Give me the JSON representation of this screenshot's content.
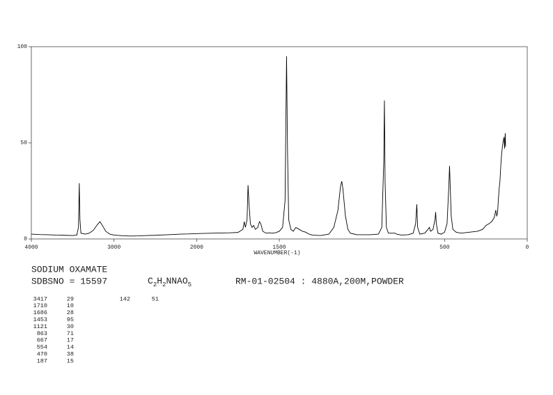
{
  "chart_data": {
    "type": "line",
    "color": "#000000",
    "x_label": "WAVENUMBER(-1)",
    "xlim": [
      4000,
      0
    ],
    "xbreak": 2000,
    "xbreak_factor": 2,
    "xticks": [
      4000,
      3000,
      2000,
      1500,
      500,
      0
    ],
    "ylim": [
      0,
      100
    ],
    "yticks": [
      0,
      50,
      100
    ],
    "x": [
      4000,
      3900,
      3800,
      3700,
      3600,
      3500,
      3450,
      3430,
      3420,
      3412,
      3400,
      3350,
      3300,
      3250,
      3200,
      3170,
      3140,
      3100,
      3050,
      3000,
      2900,
      2800,
      2700,
      2600,
      2500,
      2400,
      2300,
      2200,
      2100,
      2000,
      1900,
      1800,
      1750,
      1720,
      1712,
      1705,
      1695,
      1689,
      1683,
      1675,
      1665,
      1655,
      1645,
      1630,
      1620,
      1612,
      1600,
      1580,
      1560,
      1540,
      1520,
      1500,
      1480,
      1465,
      1456,
      1450,
      1443,
      1430,
      1415,
      1400,
      1390,
      1380,
      1360,
      1340,
      1320,
      1300,
      1250,
      1200,
      1170,
      1145,
      1130,
      1122,
      1115,
      1100,
      1085,
      1070,
      1030,
      950,
      900,
      880,
      868,
      864,
      860,
      852,
      840,
      800,
      790,
      760,
      720,
      690,
      675,
      668,
      663,
      650,
      620,
      600,
      592,
      585,
      570,
      558,
      554,
      550,
      540,
      520,
      500,
      485,
      474,
      470,
      466,
      460,
      450,
      430,
      400,
      350,
      300,
      270,
      250,
      230,
      215,
      200,
      190,
      185,
      180,
      175,
      170,
      165,
      160,
      155,
      150,
      145,
      140,
      137,
      133,
      131
    ],
    "values": [
      2.5,
      2.3,
      2.2,
      2.0,
      1.9,
      1.8,
      2.0,
      6,
      29,
      10,
      3,
      2.5,
      3,
      4.5,
      7.5,
      9,
      7,
      4,
      2.5,
      2,
      1.7,
      1.5,
      1.6,
      1.8,
      1.9,
      2.1,
      2.3,
      2.5,
      2.6,
      2.8,
      3.0,
      3.2,
      3.4,
      5,
      9,
      6,
      10,
      28,
      18,
      8,
      6,
      7,
      5,
      6,
      9,
      8,
      4,
      3,
      3.2,
      3,
      3.3,
      4,
      6,
      20,
      95,
      45,
      10,
      5,
      4,
      6,
      5.5,
      5,
      4,
      3.5,
      2.5,
      2,
      1.8,
      2.5,
      6,
      15,
      27,
      30,
      26,
      12,
      5,
      3,
      2.2,
      2.2,
      2.5,
      6,
      40,
      72,
      30,
      6,
      3,
      3,
      2.5,
      2,
      2.2,
      3,
      8,
      18,
      6,
      2.5,
      3,
      5,
      6,
      4,
      5,
      10,
      14,
      8,
      3,
      2.5,
      3.5,
      8,
      28,
      38,
      28,
      12,
      5,
      3.5,
      3,
      3.5,
      4,
      5,
      7,
      8,
      9,
      11,
      15,
      12,
      13,
      20,
      26,
      30,
      38,
      44,
      48,
      51,
      53,
      47,
      55,
      48
    ]
  },
  "sample": {
    "name": "SODIUM OXAMATE",
    "sdbs": "SDBSNO = 15597",
    "formula": [
      "C",
      "2",
      "H",
      "2",
      "NNAO",
      "5"
    ],
    "conditions": "RM-01-02504 : 4880A,200M,POWDER"
  },
  "peak_table": [
    [
      [
        3417,
        29
      ],
      [
        1710,
        10
      ],
      [
        1686,
        28
      ],
      [
        1453,
        95
      ],
      [
        1121,
        30
      ],
      [
        863,
        71
      ],
      [
        667,
        17
      ],
      [
        554,
        14
      ],
      [
        470,
        38
      ],
      [
        187,
        15
      ]
    ],
    [
      [
        142,
        51
      ]
    ]
  ]
}
